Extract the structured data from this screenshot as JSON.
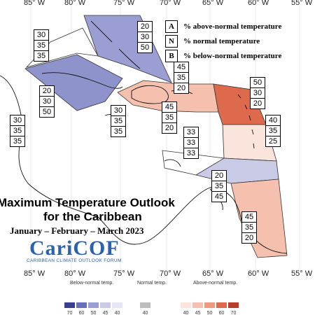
{
  "longitudes_top": [
    "85° W",
    "80° W",
    "75° W",
    "70° W",
    "65° W",
    "60° W",
    "55° W"
  ],
  "longitudes_bottom": [
    "85° W",
    "80° W",
    "75° W",
    "70° W",
    "65° W",
    "60° W",
    "55° W"
  ],
  "legend": [
    {
      "key": "A",
      "text": "% above-normal temperature"
    },
    {
      "key": "N",
      "text": "% normal temperature"
    },
    {
      "key": "B",
      "text": "% below-normal temperature"
    }
  ],
  "title": {
    "line1": "Maximum Temperature Outlook",
    "line2": "for the Caribbean",
    "dates": "January – February – March 2023"
  },
  "logo": {
    "name": "CariCOF",
    "subtitle": "CARIBBEAN CLIMATE OUTLOOK FORUM"
  },
  "regions": [
    {
      "id": "bahamas",
      "A": "20",
      "N": "30",
      "B": "50"
    },
    {
      "id": "gulf-west",
      "A": "30",
      "N": "35",
      "B": "35"
    },
    {
      "id": "cuba",
      "A": "20",
      "N": "30",
      "B": "50"
    },
    {
      "id": "florida-east",
      "A": "30",
      "N": "35",
      "B": "35"
    },
    {
      "id": "jamaica-west",
      "A": "30",
      "N": "35",
      "B": "35"
    },
    {
      "id": "hispaniola",
      "A": "45",
      "N": "35",
      "B": "20"
    },
    {
      "id": "hispaniola-south",
      "A": "45",
      "N": "35",
      "B": "20"
    },
    {
      "id": "leeward",
      "A": "50",
      "N": "30",
      "B": "20"
    },
    {
      "id": "windward",
      "A": "40",
      "N": "35",
      "B": "25"
    },
    {
      "id": "central-caribbean",
      "A": "33",
      "N": "33",
      "B": "33"
    },
    {
      "id": "abc-islands",
      "A": "20",
      "N": "35",
      "B": "45"
    },
    {
      "id": "guianas",
      "A": "45",
      "N": "35",
      "B": "20"
    }
  ],
  "scale": {
    "below_label": "Below-normal temp.",
    "normal_label": "Normal temp.",
    "above_label": "Above-normal temp.",
    "below_values": [
      "70",
      "60",
      "50",
      "45",
      "40"
    ],
    "normal_values": [
      "40"
    ],
    "above_values": [
      "40",
      "45",
      "50",
      "60",
      "70"
    ],
    "below_colors": [
      "#3b3f8f",
      "#6a6fb8",
      "#9a9ed2",
      "#c8cae6",
      "#e6e7f4"
    ],
    "normal_color": "#bdbdbd",
    "above_colors": [
      "#fbe4dc",
      "#f5c0ad",
      "#ee9a80",
      "#dd6a4c",
      "#b83d2a"
    ]
  }
}
